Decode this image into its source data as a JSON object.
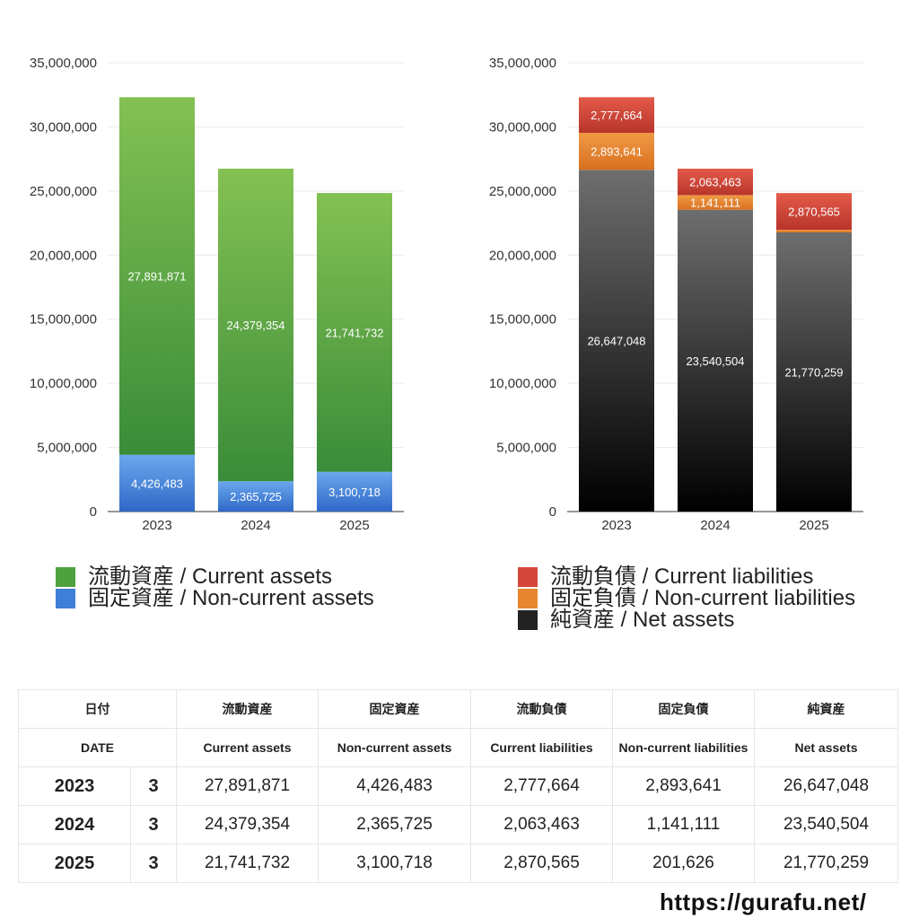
{
  "chart_data": [
    {
      "type": "bar",
      "stacked": true,
      "categories": [
        "2023",
        "2024",
        "2025"
      ],
      "ylim": [
        0,
        35000000
      ],
      "yticks": [
        "0",
        "5,000,000",
        "10,000,000",
        "15,000,000",
        "20,000,000",
        "25,000,000",
        "30,000,000",
        "35,000,000"
      ],
      "grid": true,
      "legend_position": "bottom",
      "series": [
        {
          "name": "固定資産 / Non-current assets",
          "values": [
            4426483,
            2365725,
            3100718
          ],
          "labels": [
            "4,426,483",
            "2,365,725",
            "3,100,718"
          ],
          "color_top": "#6aa8ec",
          "color_bottom": "#2f68c8"
        },
        {
          "name": "流動資産 / Current assets",
          "values": [
            27891871,
            24379354,
            21741732
          ],
          "labels": [
            "27,891,871",
            "24,379,354",
            "21,741,732"
          ],
          "color_top": "#84c153",
          "color_bottom": "#3a8c39"
        }
      ]
    },
    {
      "type": "bar",
      "stacked": true,
      "categories": [
        "2023",
        "2024",
        "2025"
      ],
      "ylim": [
        0,
        35000000
      ],
      "yticks": [
        "0",
        "5,000,000",
        "10,000,000",
        "15,000,000",
        "20,000,000",
        "25,000,000",
        "30,000,000",
        "35,000,000"
      ],
      "grid": true,
      "legend_position": "bottom",
      "series": [
        {
          "name": "純資産 / Net assets",
          "values": [
            26647048,
            23540504,
            21770259
          ],
          "labels": [
            "26,647,048",
            "23,540,504",
            "21,770,259"
          ],
          "color_top": "#6e6e6e",
          "color_bottom": "#000000"
        },
        {
          "name": "固定負債 / Non-current liabilities",
          "values": [
            2893641,
            1141111,
            201626
          ],
          "labels": [
            "2,893,641",
            "1,141,111",
            "201,626"
          ],
          "color_top": "#f09a45",
          "color_bottom": "#d87020"
        },
        {
          "name": "流動負債 / Current liabilities",
          "values": [
            2777664,
            2063463,
            2870565
          ],
          "labels": [
            "2,777,664",
            "2,063,463",
            "2,870,565"
          ],
          "color_top": "#e45a4a",
          "color_bottom": "#b8352a"
        }
      ]
    }
  ],
  "legends": {
    "assets": [
      {
        "label": "流動資産 / Current assets",
        "color": "#4fa03f"
      },
      {
        "label": "固定資産 / Non-current assets",
        "color": "#3f7fd8"
      }
    ],
    "liabilities": [
      {
        "label": "流動負債 / Current liabilities",
        "color": "#d4473a"
      },
      {
        "label": "固定負債 / Non-current liabilities",
        "color": "#e8852f"
      },
      {
        "label": "純資産 / Net assets",
        "color": "#222222"
      }
    ]
  },
  "table": {
    "header_jp": [
      "日付",
      "流動資産",
      "固定資産",
      "流動負債",
      "固定負債",
      "純資産"
    ],
    "header_en": [
      "DATE",
      "Current assets",
      "Non-current assets",
      "Current liabilities",
      "Non-current liabilities",
      "Net assets"
    ],
    "rows": [
      {
        "year": "2023",
        "month": "3",
        "values": [
          "27,891,871",
          "4,426,483",
          "2,777,664",
          "2,893,641",
          "26,647,048"
        ]
      },
      {
        "year": "2024",
        "month": "3",
        "values": [
          "24,379,354",
          "2,365,725",
          "2,063,463",
          "1,141,111",
          "23,540,504"
        ]
      },
      {
        "year": "2025",
        "month": "3",
        "values": [
          "21,741,732",
          "3,100,718",
          "2,870,565",
          "201,626",
          "21,770,259"
        ]
      }
    ]
  },
  "site_url": "https://gurafu.net/"
}
